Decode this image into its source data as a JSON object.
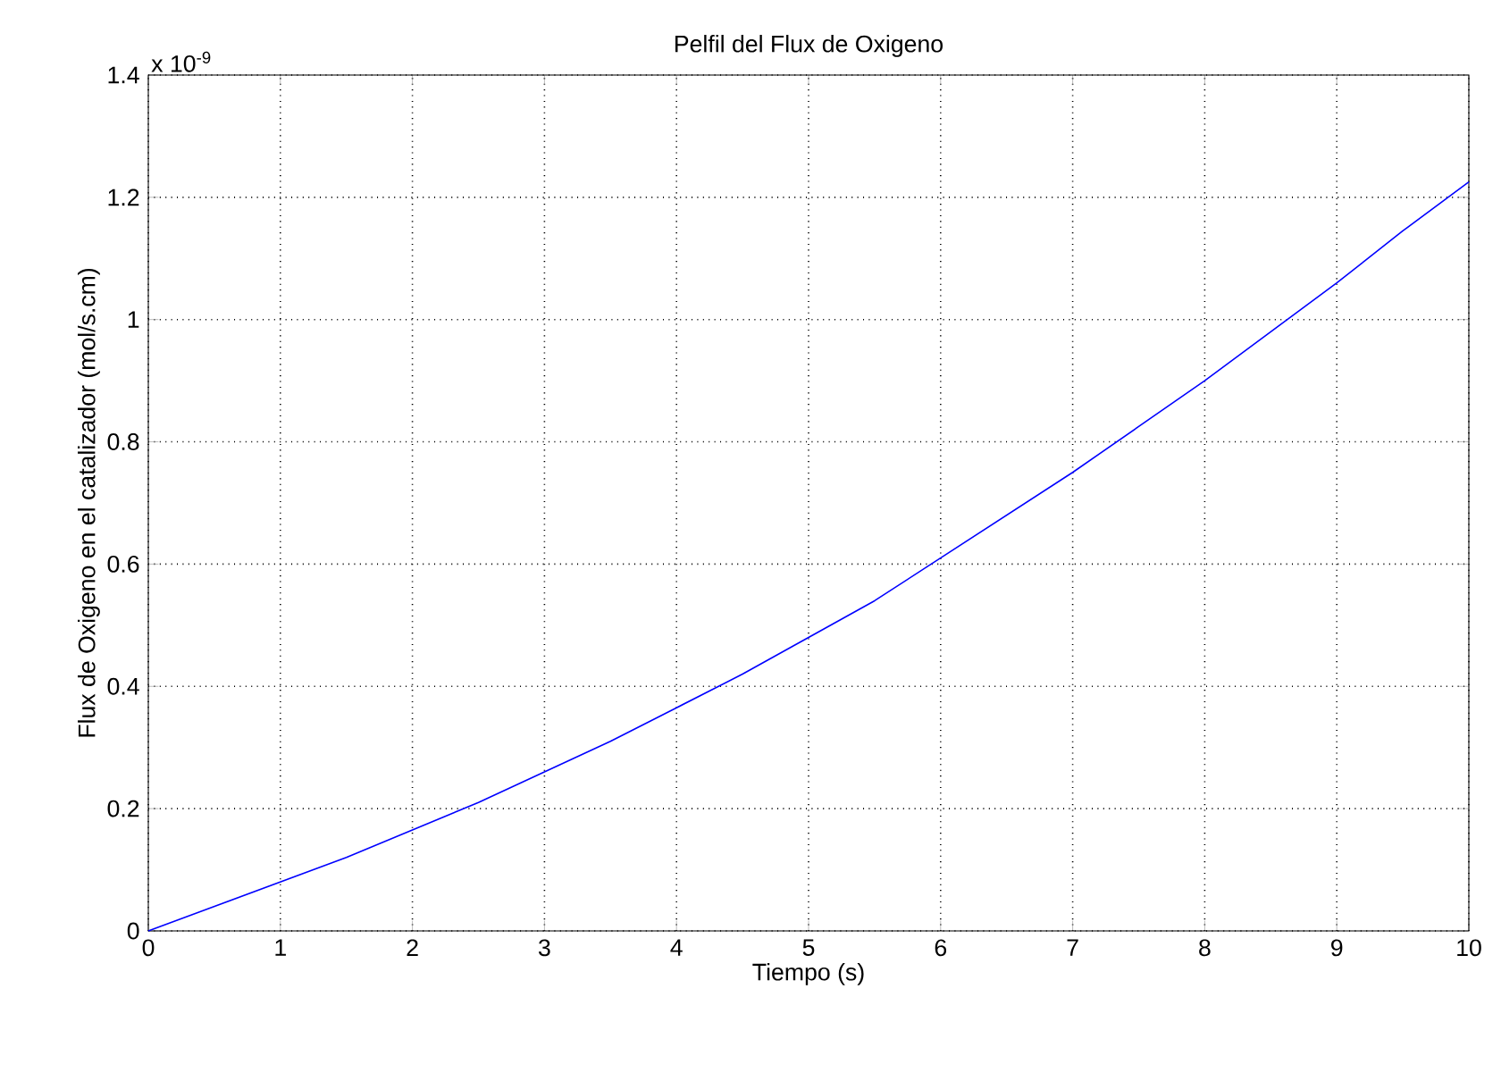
{
  "chart_data": {
    "type": "line",
    "title": "Pelfil del Flux de Oxigeno",
    "xlabel": "Tiempo (s)",
    "ylabel": "Flux de Oxigeno en el catalizador (mol/s.cm)",
    "annotations": [
      "x 10$^{-9}$"
    ],
    "x": [
      0,
      0.5,
      1,
      1.5,
      2,
      2.5,
      3,
      3.5,
      4,
      4.5,
      5,
      5.5,
      6,
      6.5,
      7,
      7.5,
      8,
      8.5,
      9,
      9.5,
      10
    ],
    "series": [
      {
        "color": "#0000ff",
        "values": [
          0,
          0.04,
          0.08,
          0.12,
          0.165,
          0.21,
          0.26,
          0.31,
          0.365,
          0.42,
          0.48,
          0.54,
          0.61,
          0.68,
          0.75,
          0.825,
          0.9,
          0.98,
          1.06,
          1.145,
          1.225
        ]
      }
    ],
    "xlim": [
      0,
      10
    ],
    "ylim": [
      0,
      1.4
    ],
    "xticks": [
      0,
      1,
      2,
      3,
      4,
      5,
      6,
      7,
      8,
      9,
      10
    ],
    "yticks": [
      0,
      0.2,
      0.4,
      0.6,
      0.8,
      1,
      1.2,
      1.4
    ],
    "grid": true,
    "line_style": "solid"
  }
}
